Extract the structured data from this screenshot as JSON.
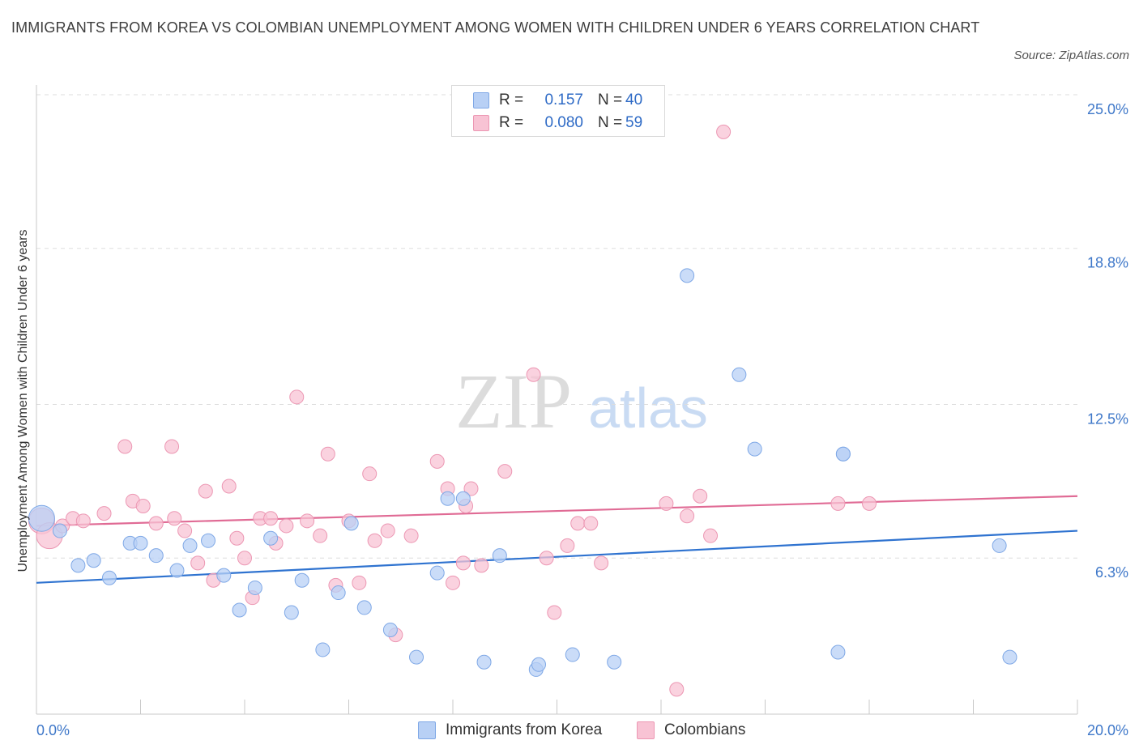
{
  "title": "IMMIGRANTS FROM KOREA VS COLOMBIAN UNEMPLOYMENT AMONG WOMEN WITH CHILDREN UNDER 6 YEARS CORRELATION CHART",
  "source": "Source: ZipAtlas.com",
  "watermark": {
    "zip": "ZIP",
    "atlas": "atlas"
  },
  "colors": {
    "korea_fill": "#b8d0f5",
    "korea_stroke": "#7fa8e6",
    "korea_line": "#2f73d0",
    "colombia_fill": "#f8c3d4",
    "colombia_stroke": "#ec97b3",
    "colombia_line": "#e06b95",
    "tick_label": "#3f78c9",
    "grid": "#dddddd"
  },
  "legend": {
    "rows": [
      {
        "r_label": "R = ",
        "r_value": "0.157",
        "n_label": "N = ",
        "n_value": "40"
      },
      {
        "r_label": "R = ",
        "r_value": "0.080",
        "n_label": "N = ",
        "n_value": "59"
      }
    ]
  },
  "bottom_legend": {
    "korea": "Immigrants from Korea",
    "colombia": "Colombians"
  },
  "chart_data": {
    "type": "scatter",
    "title": "IMMIGRANTS FROM KOREA VS COLOMBIAN UNEMPLOYMENT AMONG WOMEN WITH CHILDREN UNDER 6 YEARS CORRELATION CHART",
    "xlabel": "",
    "ylabel": "Unemployment Among Women with Children Under 6 years",
    "xlim": [
      0,
      20
    ],
    "ylim": [
      0,
      25
    ],
    "x_tick_labels": [
      "0.0%",
      "20.0%"
    ],
    "y_ticks": [
      6.3,
      12.5,
      18.8,
      25.0
    ],
    "y_tick_labels": [
      "6.3%",
      "12.5%",
      "18.8%",
      "25.0%"
    ],
    "grid": "horizontal dashed",
    "legend_position": "top-center",
    "series": [
      {
        "name": "Immigrants from Korea",
        "r": 0.157,
        "n": 40,
        "trend": {
          "x": [
            0,
            20
          ],
          "y": [
            5.3,
            7.4
          ]
        },
        "points": [
          [
            0.1,
            7.9
          ],
          [
            0.45,
            7.4
          ],
          [
            0.8,
            6.0
          ],
          [
            1.1,
            6.2
          ],
          [
            1.4,
            5.5
          ],
          [
            1.8,
            6.9
          ],
          [
            2.0,
            6.9
          ],
          [
            2.3,
            6.4
          ],
          [
            2.7,
            5.8
          ],
          [
            2.95,
            6.8
          ],
          [
            3.3,
            7.0
          ],
          [
            3.6,
            5.6
          ],
          [
            3.9,
            4.2
          ],
          [
            4.2,
            5.1
          ],
          [
            4.5,
            7.1
          ],
          [
            4.9,
            4.1
          ],
          [
            5.1,
            5.4
          ],
          [
            5.5,
            2.6
          ],
          [
            5.8,
            4.9
          ],
          [
            6.05,
            7.7
          ],
          [
            6.3,
            4.3
          ],
          [
            6.8,
            3.4
          ],
          [
            7.3,
            2.3
          ],
          [
            7.7,
            5.7
          ],
          [
            7.9,
            8.7
          ],
          [
            8.2,
            8.7
          ],
          [
            8.6,
            2.1
          ],
          [
            8.9,
            6.4
          ],
          [
            9.6,
            1.8
          ],
          [
            9.65,
            2.0
          ],
          [
            10.3,
            2.4
          ],
          [
            11.1,
            2.1
          ],
          [
            12.5,
            17.7
          ],
          [
            13.5,
            13.7
          ],
          [
            13.8,
            10.7
          ],
          [
            15.5,
            10.5
          ],
          [
            15.5,
            10.5
          ],
          [
            15.4,
            2.5
          ],
          [
            18.5,
            6.8
          ],
          [
            18.7,
            2.3
          ]
        ]
      },
      {
        "name": "Colombians",
        "r": 0.08,
        "n": 59,
        "trend": {
          "x": [
            0,
            20
          ],
          "y": [
            7.6,
            8.8
          ]
        },
        "points": [
          [
            0.1,
            7.8
          ],
          [
            0.25,
            7.2
          ],
          [
            0.5,
            7.6
          ],
          [
            0.7,
            7.9
          ],
          [
            0.9,
            7.8
          ],
          [
            1.3,
            8.1
          ],
          [
            1.7,
            10.8
          ],
          [
            1.85,
            8.6
          ],
          [
            2.05,
            8.4
          ],
          [
            2.3,
            7.7
          ],
          [
            2.6,
            10.8
          ],
          [
            2.65,
            7.9
          ],
          [
            2.85,
            7.4
          ],
          [
            3.1,
            6.1
          ],
          [
            3.25,
            9.0
          ],
          [
            3.4,
            5.4
          ],
          [
            3.7,
            9.2
          ],
          [
            3.85,
            7.1
          ],
          [
            4.0,
            6.3
          ],
          [
            4.15,
            4.7
          ],
          [
            4.3,
            7.9
          ],
          [
            4.5,
            7.9
          ],
          [
            4.6,
            6.9
          ],
          [
            4.8,
            7.6
          ],
          [
            5.0,
            12.8
          ],
          [
            5.2,
            7.8
          ],
          [
            5.45,
            7.2
          ],
          [
            5.6,
            10.5
          ],
          [
            5.75,
            5.2
          ],
          [
            6.0,
            7.8
          ],
          [
            6.2,
            5.3
          ],
          [
            6.4,
            9.7
          ],
          [
            6.5,
            7.0
          ],
          [
            6.75,
            7.4
          ],
          [
            6.9,
            3.2
          ],
          [
            7.2,
            7.2
          ],
          [
            7.7,
            10.2
          ],
          [
            7.9,
            9.1
          ],
          [
            8.0,
            5.3
          ],
          [
            8.2,
            6.1
          ],
          [
            8.35,
            9.1
          ],
          [
            8.25,
            8.4
          ],
          [
            8.55,
            6.0
          ],
          [
            9.0,
            9.8
          ],
          [
            9.55,
            13.7
          ],
          [
            9.8,
            6.3
          ],
          [
            9.95,
            4.1
          ],
          [
            10.2,
            6.8
          ],
          [
            10.4,
            7.7
          ],
          [
            10.65,
            7.7
          ],
          [
            10.85,
            6.1
          ],
          [
            12.1,
            8.5
          ],
          [
            12.3,
            1.0
          ],
          [
            12.5,
            8.0
          ],
          [
            12.75,
            8.8
          ],
          [
            12.95,
            7.2
          ],
          [
            13.2,
            23.5
          ],
          [
            15.4,
            8.5
          ],
          [
            16.0,
            8.5
          ]
        ]
      }
    ]
  }
}
